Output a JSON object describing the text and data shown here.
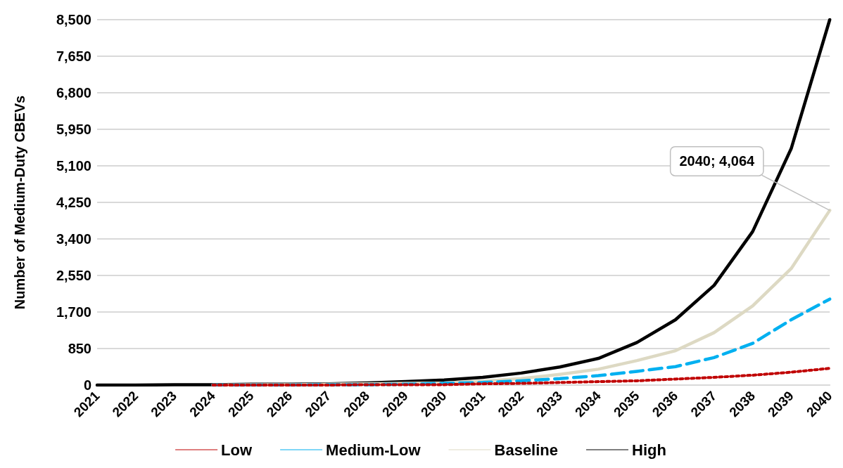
{
  "chart_data": {
    "type": "line",
    "ylabel": "Number of Medium-Duty CBEVs",
    "categories": [
      "2021",
      "2022",
      "2023",
      "2024",
      "2025",
      "2026",
      "2027",
      "2028",
      "2029",
      "2030",
      "2031",
      "2032",
      "2033",
      "2034",
      "2035",
      "2036",
      "2037",
      "2038",
      "2039",
      "2040"
    ],
    "series": [
      {
        "name": "Low",
        "color": "#c00000",
        "line_style": "dotted",
        "values": [
          null,
          null,
          null,
          0,
          0,
          0,
          0,
          10,
          10,
          10,
          30,
          40,
          60,
          80,
          100,
          140,
          180,
          230,
          300,
          390
        ]
      },
      {
        "name": "Medium-Low",
        "color": "#00b0f0",
        "line_style": "dashed",
        "values": [
          null,
          null,
          null,
          0,
          0,
          0,
          10,
          10,
          20,
          40,
          60,
          100,
          150,
          220,
          320,
          430,
          640,
          970,
          1520,
          2000
        ]
      },
      {
        "name": "Baseline",
        "color": "#ddd9c3",
        "line_style": "solid",
        "values": [
          null,
          null,
          null,
          0,
          10,
          10,
          20,
          30,
          40,
          50,
          90,
          150,
          250,
          370,
          570,
          800,
          1220,
          1840,
          2710,
          4064
        ]
      },
      {
        "name": "High",
        "color": "#000000",
        "line_style": "solid",
        "values": [
          0,
          0,
          10,
          10,
          20,
          20,
          30,
          50,
          80,
          120,
          180,
          280,
          420,
          620,
          990,
          1520,
          2320,
          3570,
          5500,
          8500
        ]
      }
    ],
    "annotations": [
      {
        "text": "2040; 4,064",
        "x": "2040",
        "y": 4064
      }
    ],
    "ylim": [
      0,
      8500
    ],
    "yticks": [
      0,
      {
        "value": 850,
        "label": "850"
      },
      {
        "value": 1700,
        "label": "1,700"
      },
      {
        "value": 2550,
        "label": "2,550"
      },
      {
        "value": 3400,
        "label": "3,400"
      },
      {
        "value": 4250,
        "label": "4,250"
      },
      {
        "value": 5100,
        "label": "5,100"
      },
      {
        "value": 5950,
        "label": "5,950"
      },
      {
        "value": 6800,
        "label": "6,800"
      },
      {
        "value": 7650,
        "label": "7,650"
      },
      {
        "value": 8500,
        "label": "8,500"
      }
    ],
    "grid": "y",
    "legend": "bottom",
    "marker": "none"
  }
}
